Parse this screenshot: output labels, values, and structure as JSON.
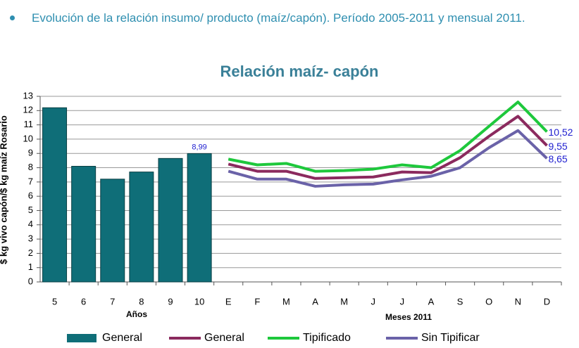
{
  "header": {
    "text": "Evolución de la relación insumo/ producto (maíz/capón). Período 2005-2011 y mensual 2011."
  },
  "chart_data": {
    "type": "combo",
    "title": "Relación maíz- capón",
    "y_label": "$ kg vivo capón/$ kg maíz Rosario",
    "group_labels": [
      "Años",
      "Meses 2011"
    ],
    "categories": [
      "5",
      "6",
      "7",
      "8",
      "9",
      "10",
      "E",
      "F",
      "M",
      "A",
      "M",
      "J",
      "J",
      "A",
      "S",
      "O",
      "N",
      "D"
    ],
    "ylim": [
      0,
      13
    ],
    "yticks": [
      0,
      1,
      2,
      3,
      4,
      5,
      6,
      7,
      8,
      9,
      10,
      11,
      12,
      13
    ],
    "grid": true,
    "series": [
      {
        "name": "General",
        "type": "bar",
        "color": "#0f6e78",
        "values": [
          12.2,
          8.1,
          7.2,
          7.7,
          8.65,
          8.99,
          null,
          null,
          null,
          null,
          null,
          null,
          null,
          null,
          null,
          null,
          null,
          null
        ],
        "value_labels": [
          null,
          null,
          null,
          null,
          null,
          "8,99",
          null,
          null,
          null,
          null,
          null,
          null,
          null,
          null,
          null,
          null,
          null,
          null
        ]
      },
      {
        "name": "General",
        "type": "line",
        "color": "#8b2a5e",
        "values": [
          null,
          null,
          null,
          null,
          null,
          null,
          8.25,
          7.75,
          7.75,
          7.25,
          7.3,
          7.35,
          7.7,
          7.65,
          8.7,
          10.2,
          11.6,
          9.55
        ],
        "value_labels": [
          null,
          null,
          null,
          null,
          null,
          null,
          null,
          null,
          null,
          null,
          null,
          null,
          null,
          null,
          null,
          null,
          null,
          "9,55"
        ]
      },
      {
        "name": "Tipificado",
        "type": "line",
        "color": "#1ec83c",
        "values": [
          null,
          null,
          null,
          null,
          null,
          null,
          8.6,
          8.2,
          8.3,
          7.75,
          7.8,
          7.9,
          8.2,
          8.0,
          9.2,
          10.9,
          12.6,
          10.52
        ],
        "value_labels": [
          null,
          null,
          null,
          null,
          null,
          null,
          null,
          null,
          null,
          null,
          null,
          null,
          null,
          null,
          null,
          null,
          null,
          "10,52"
        ]
      },
      {
        "name": "Sin Tipificar",
        "type": "line",
        "color": "#6a62a8",
        "values": [
          null,
          null,
          null,
          null,
          null,
          null,
          7.75,
          7.2,
          7.2,
          6.7,
          6.8,
          6.85,
          7.15,
          7.4,
          8.0,
          9.4,
          10.6,
          8.65
        ],
        "value_labels": [
          null,
          null,
          null,
          null,
          null,
          null,
          null,
          null,
          null,
          null,
          null,
          null,
          null,
          null,
          null,
          null,
          null,
          "8,65"
        ]
      }
    ]
  }
}
